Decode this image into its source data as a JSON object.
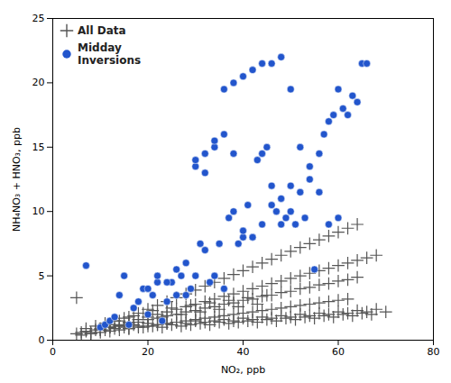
{
  "chart_data": {
    "type": "scatter",
    "x_label": "NO₂, ppb",
    "y_label": "NH₄NO₃ + HNO₃, ppb",
    "xlim": [
      0,
      80
    ],
    "ylim": [
      0,
      25
    ],
    "xticks": [
      0,
      20,
      40,
      60,
      80
    ],
    "yticks": [
      0,
      5,
      10,
      15,
      20,
      25
    ],
    "grid": false,
    "legend": "upper left",
    "series": [
      {
        "name": "All Data",
        "color": "#555555",
        "marker": "plus",
        "x": [
          5,
          6,
          7,
          8,
          9,
          10,
          11,
          12,
          13,
          14,
          15,
          16,
          17,
          18,
          19,
          20,
          21,
          22,
          23,
          24,
          25,
          26,
          27,
          28,
          29,
          30,
          31,
          32,
          33,
          34,
          35,
          36,
          37,
          38,
          39,
          40,
          41,
          42,
          43,
          44,
          45,
          46,
          47,
          48,
          49,
          50,
          51,
          52,
          53,
          54,
          55,
          56,
          57,
          58,
          59,
          60,
          61,
          62,
          63,
          64,
          65,
          66,
          67,
          68,
          70,
          7,
          9,
          11,
          13,
          15,
          17,
          19,
          21,
          23,
          25,
          27,
          29,
          31,
          33,
          35,
          37,
          39,
          41,
          43,
          45,
          12,
          14,
          16,
          18,
          20,
          22,
          24,
          26,
          28,
          30,
          32,
          34,
          36,
          38,
          40,
          42,
          44,
          46,
          48,
          50,
          52,
          54,
          56,
          58,
          60,
          62,
          64,
          10,
          12,
          14,
          16,
          18,
          20,
          22,
          24,
          26,
          28,
          30,
          32,
          34,
          36,
          38,
          40,
          42,
          44,
          46,
          48,
          50,
          52,
          54,
          56,
          58,
          60,
          62,
          64,
          66,
          68,
          8,
          10,
          12,
          14,
          16,
          18,
          20,
          22,
          24,
          26,
          28,
          30,
          32,
          34,
          36,
          38,
          40,
          42,
          44,
          46,
          48,
          50,
          52,
          54,
          56,
          58,
          60,
          62,
          64,
          6,
          8,
          10,
          12,
          14,
          16,
          18,
          20,
          22,
          24,
          26,
          28,
          30,
          32,
          34,
          36,
          38,
          40,
          42,
          44,
          46,
          48,
          50,
          52,
          54,
          56,
          58,
          60,
          62,
          5
        ],
        "y": [
          0.5,
          0.6,
          0.7,
          0.5,
          0.8,
          0.9,
          0.8,
          1.0,
          0.9,
          1.1,
          1.0,
          0.9,
          1.2,
          1.1,
          1.0,
          1.3,
          1.1,
          1.2,
          1.0,
          1.3,
          1.2,
          1.4,
          1.1,
          1.3,
          1.2,
          1.5,
          1.3,
          1.4,
          1.2,
          1.5,
          1.4,
          1.6,
          1.3,
          1.5,
          1.4,
          1.7,
          1.5,
          1.6,
          1.4,
          1.8,
          1.6,
          1.7,
          1.5,
          1.9,
          1.7,
          1.8,
          1.6,
          2.0,
          1.8,
          1.9,
          1.7,
          2.1,
          1.9,
          2.0,
          1.8,
          2.2,
          2.0,
          2.1,
          1.9,
          2.3,
          2.1,
          2.2,
          2.0,
          2.4,
          2.2,
          0.9,
          1.1,
          1.3,
          1.5,
          1.7,
          1.9,
          2.1,
          2.3,
          1.8,
          2.5,
          2.0,
          2.7,
          2.2,
          2.9,
          2.4,
          3.1,
          2.6,
          3.3,
          2.8,
          3.5,
          1.2,
          1.5,
          1.8,
          2.1,
          2.4,
          2.7,
          3.0,
          3.3,
          3.6,
          3.9,
          4.2,
          4.5,
          4.8,
          5.1,
          5.4,
          5.7,
          6.0,
          6.3,
          6.6,
          6.9,
          7.2,
          7.5,
          7.8,
          8.1,
          8.4,
          8.7,
          9.0,
          0.8,
          1.0,
          1.2,
          1.4,
          1.6,
          1.8,
          2.0,
          2.2,
          2.4,
          2.6,
          2.8,
          3.0,
          3.2,
          3.4,
          3.6,
          3.8,
          4.0,
          4.2,
          4.4,
          4.6,
          4.8,
          5.0,
          5.2,
          5.4,
          5.6,
          5.8,
          6.0,
          6.2,
          6.4,
          6.6,
          0.6,
          0.8,
          1.0,
          1.1,
          1.3,
          1.4,
          1.6,
          1.7,
          1.9,
          2.0,
          2.2,
          2.3,
          2.5,
          2.6,
          2.8,
          2.9,
          3.1,
          3.2,
          3.4,
          3.5,
          3.7,
          3.8,
          4.0,
          4.1,
          4.3,
          4.4,
          4.6,
          4.7,
          4.9,
          0.4,
          0.5,
          0.6,
          0.7,
          0.8,
          0.9,
          1.0,
          1.1,
          1.2,
          1.3,
          1.4,
          1.5,
          1.6,
          1.7,
          1.8,
          1.9,
          2.0,
          2.1,
          2.2,
          2.3,
          2.4,
          2.5,
          2.6,
          2.7,
          2.8,
          2.9,
          3.0,
          3.1,
          3.2,
          3.3
        ]
      },
      {
        "name": "Midday\nInversions",
        "color": "#2255cc",
        "marker": "circle",
        "x": [
          7,
          10,
          11,
          12,
          13,
          14,
          15,
          16,
          17,
          18,
          19,
          20,
          21,
          22,
          23,
          24,
          25,
          26,
          27,
          28,
          29,
          30,
          31,
          32,
          33,
          34,
          35,
          36,
          37,
          38,
          39,
          40,
          41,
          42,
          43,
          44,
          45,
          46,
          47,
          48,
          49,
          50,
          51,
          52,
          53,
          54,
          55,
          56,
          57,
          58,
          59,
          60,
          61,
          62,
          63,
          64,
          65,
          66,
          20,
          22,
          24,
          26,
          28,
          30,
          32,
          34,
          36,
          38,
          40,
          42,
          44,
          46,
          48,
          50,
          52,
          54,
          56,
          58,
          60,
          30,
          32,
          34,
          36,
          38,
          40,
          42,
          44,
          46,
          48,
          50
        ],
        "y": [
          5.8,
          1.0,
          1.2,
          1.5,
          1.8,
          3.5,
          5.0,
          1.2,
          2.5,
          3.0,
          4.0,
          2.0,
          3.5,
          4.5,
          1.5,
          3.0,
          4.5,
          3.5,
          5.0,
          3.5,
          4.0,
          5.0,
          7.5,
          7.0,
          4.5,
          5.0,
          7.5,
          4.0,
          9.5,
          10.0,
          7.5,
          8.0,
          10.5,
          8.0,
          14.0,
          14.5,
          15.0,
          10.5,
          10.0,
          9.0,
          9.5,
          12.0,
          9.0,
          15.0,
          9.5,
          13.5,
          5.5,
          14.5,
          16.0,
          17.0,
          17.5,
          19.5,
          18.0,
          17.5,
          19.0,
          18.5,
          21.5,
          21.5,
          4.0,
          5.0,
          4.5,
          5.5,
          6.0,
          13.5,
          13.0,
          15.0,
          16.0,
          14.5,
          8.5,
          8.0,
          9.0,
          12.0,
          11.0,
          10.0,
          11.5,
          12.5,
          11.5,
          9.0,
          9.5,
          14.0,
          14.5,
          15.5,
          19.5,
          20.0,
          20.5,
          21.0,
          21.5,
          21.5,
          22.0,
          19.5
        ]
      }
    ]
  }
}
